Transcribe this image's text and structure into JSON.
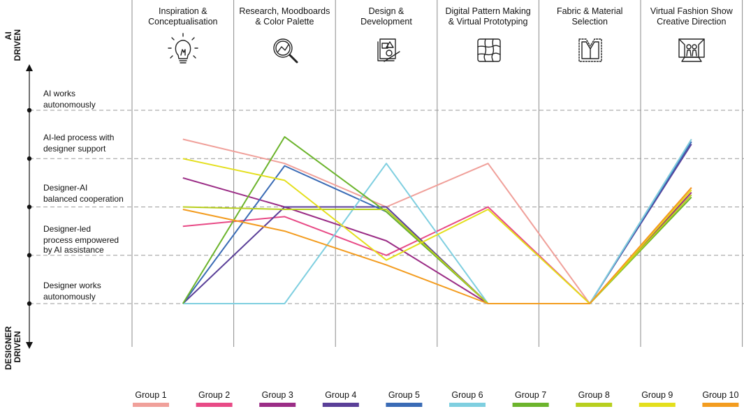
{
  "chart_data": {
    "type": "line",
    "stages": [
      {
        "line1": "Inspiration &",
        "line2": "Conceptualisation",
        "icon": "lightbulb-icon"
      },
      {
        "line1": "Research, Moodboards",
        "line2": "& Color Palette",
        "icon": "magnifier-chart-icon"
      },
      {
        "line1": "Design &",
        "line2": "Development",
        "icon": "design-tools-icon"
      },
      {
        "line1": "Digital Pattern Making",
        "line2": "& Virtual Prototyping",
        "icon": "pattern-grid-icon"
      },
      {
        "line1": "Fabric & Material",
        "line2": "Selection",
        "icon": "garment-icon"
      },
      {
        "line1": "Virtual Fashion Show",
        "line2": "Creative Direction",
        "icon": "fashion-show-icon"
      }
    ],
    "levels": [
      {
        "value": 1,
        "lines": [
          "Designer works",
          "autonomously"
        ]
      },
      {
        "value": 2,
        "lines": [
          "Designer-led",
          "process empowered",
          "by AI assistance"
        ]
      },
      {
        "value": 3,
        "lines": [
          "Designer-AI",
          "balanced cooperation"
        ]
      },
      {
        "value": 4,
        "lines": [
          "AI-led process with",
          "designer support"
        ]
      },
      {
        "value": 5,
        "lines": [
          "AI works",
          "autonomously"
        ]
      }
    ],
    "y_axis": {
      "top_line1": "AI",
      "top_line2": "DRIVEN",
      "bottom_line1": "DESIGNER",
      "bottom_line2": "DRIVEN"
    },
    "ylim": [
      1,
      5
    ],
    "series": [
      {
        "name": "Group 1",
        "color": "#f0a09a",
        "values": [
          4.4,
          3.9,
          3.0,
          3.9,
          1.0,
          4.4
        ]
      },
      {
        "name": "Group 2",
        "color": "#e84a86",
        "values": [
          2.6,
          2.8,
          2.0,
          3.0,
          1.0,
          3.4
        ]
      },
      {
        "name": "Group 3",
        "color": "#9b2d86",
        "values": [
          3.6,
          3.0,
          2.3,
          1.0,
          1.0,
          3.3
        ]
      },
      {
        "name": "Group 4",
        "color": "#5a3f98",
        "values": [
          1.0,
          3.0,
          3.0,
          1.0,
          1.0,
          4.3
        ]
      },
      {
        "name": "Group 5",
        "color": "#3a6bb5",
        "values": [
          1.0,
          3.85,
          2.9,
          1.0,
          1.0,
          4.35
        ]
      },
      {
        "name": "Group 6",
        "color": "#7fcfe0",
        "values": [
          1.0,
          1.0,
          3.9,
          1.0,
          1.0,
          4.4
        ]
      },
      {
        "name": "Group 7",
        "color": "#6cb42c",
        "values": [
          1.0,
          4.45,
          2.9,
          1.0,
          1.0,
          3.2
        ]
      },
      {
        "name": "Group 8",
        "color": "#b8cf1e",
        "values": [
          3.0,
          2.95,
          2.95,
          1.0,
          1.0,
          3.25
        ]
      },
      {
        "name": "Group 9",
        "color": "#e4df1c",
        "values": [
          4.0,
          3.55,
          1.9,
          2.95,
          1.0,
          3.35
        ]
      },
      {
        "name": "Group 10",
        "color": "#f39c1f",
        "values": [
          2.95,
          2.5,
          1.8,
          1.0,
          1.0,
          3.4
        ]
      }
    ]
  }
}
